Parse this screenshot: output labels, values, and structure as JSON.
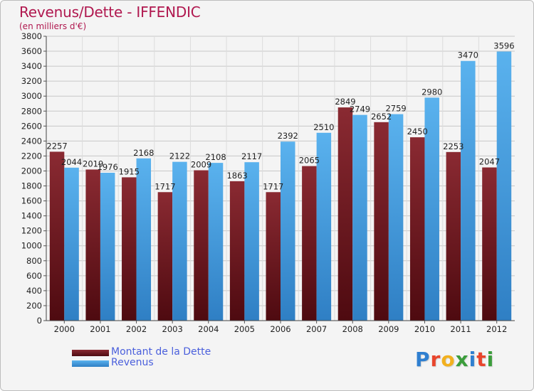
{
  "chart_data": {
    "type": "bar",
    "title": "Revenus/Dette - IFFENDIC",
    "subtitle": "(en milliers d'€)",
    "xlabel": "",
    "ylabel": "",
    "ylim": [
      0,
      3800
    ],
    "yticks": [
      0,
      200,
      400,
      600,
      800,
      1000,
      1200,
      1400,
      1600,
      1800,
      2000,
      2200,
      2400,
      2600,
      2800,
      3000,
      3200,
      3400,
      3600,
      3800
    ],
    "grid": true,
    "legend_position": "bottom-left",
    "categories": [
      "2000",
      "2001",
      "2002",
      "2003",
      "2004",
      "2005",
      "2006",
      "2007",
      "2008",
      "2009",
      "2010",
      "2011",
      "2012"
    ],
    "series": [
      {
        "name": "Montant de la Dette",
        "color": "#7a1e26",
        "values": [
          2257,
          2019,
          1915,
          1717,
          2009,
          1863,
          1717,
          2065,
          2849,
          2652,
          2450,
          2253,
          2047
        ],
        "labels": [
          "2257",
          "2019",
          "1915",
          "1717",
          "2009",
          "1863",
          "1717",
          "2065",
          "2849",
          "2652",
          "2450",
          "2253",
          "2047"
        ]
      },
      {
        "name": "Revenus",
        "color": "#4aa3e6",
        "values": [
          2044,
          1976,
          2168,
          2122,
          2108,
          2117,
          2392,
          2510,
          2749,
          2759,
          2980,
          3470,
          3596
        ],
        "labels": [
          "2044",
          "1976",
          "2168",
          "2122",
          "2108",
          "2117",
          "2392",
          "2510",
          "2749",
          "2759",
          "2980",
          "3470",
          "3596"
        ]
      }
    ]
  },
  "branding": {
    "logo_letters": [
      "P",
      "r",
      "o",
      "x",
      "i",
      "t",
      "i"
    ],
    "logo_colors": [
      "#2f7fd0",
      "#e8452c",
      "#f2b01e",
      "#3b9d3b",
      "#2f7fd0",
      "#e8452c",
      "#3b9d3b"
    ]
  }
}
